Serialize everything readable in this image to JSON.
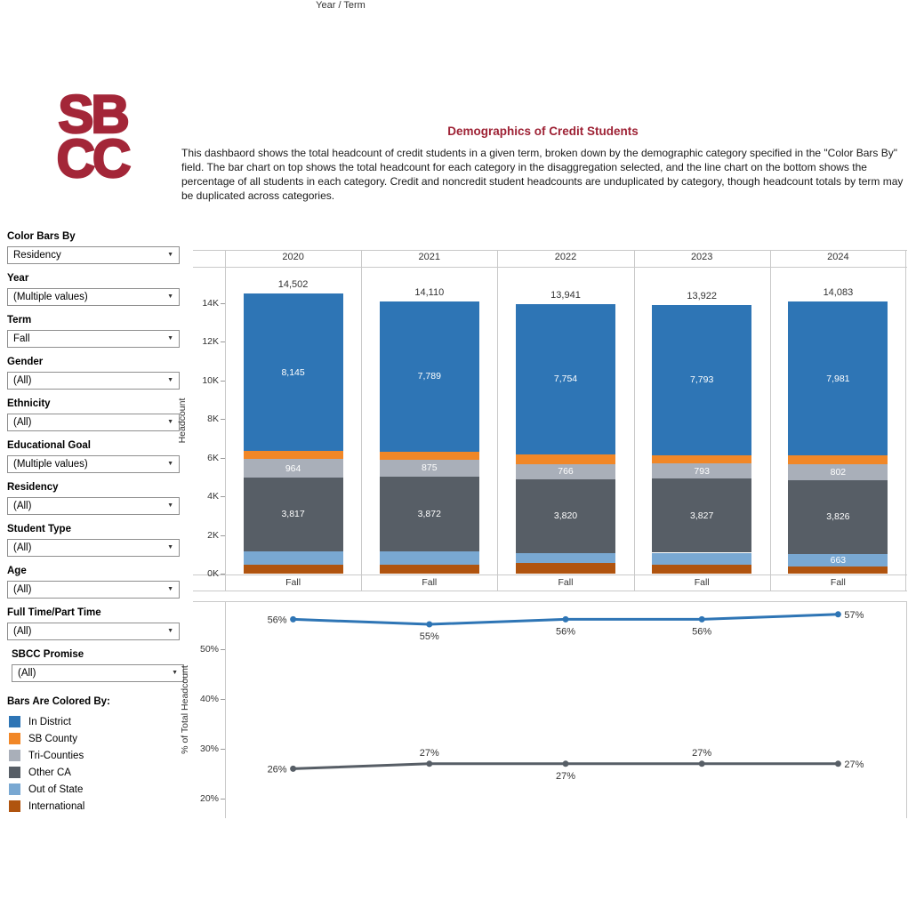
{
  "logo": {
    "line1": "SB",
    "line2": "CC"
  },
  "header": {
    "title": "Demographics of Credit Students",
    "description": "This dashbaord shows the total headcount of credit students in a given term, broken down by the demographic category specified in the \"Color Bars By\" field. The bar chart on top shows the total headcount for each category in the disaggregation selected, and the line chart on the bottom shows the percentage of all students in each category. Credit and noncredit student headcounts are unduplicated by category, though headcount totals by term may be duplicated across categories."
  },
  "filters": [
    {
      "id": "color-bars-by",
      "label": "Color Bars By",
      "value": "Residency",
      "indent": false
    },
    {
      "id": "year",
      "label": "Year",
      "value": "(Multiple values)",
      "indent": false
    },
    {
      "id": "term",
      "label": "Term",
      "value": "Fall",
      "indent": false
    },
    {
      "id": "gender",
      "label": "Gender",
      "value": "(All)",
      "indent": false
    },
    {
      "id": "ethnicity",
      "label": "Ethnicity",
      "value": "(All)",
      "indent": false
    },
    {
      "id": "educational-goal",
      "label": "Educational Goal",
      "value": "(Multiple values)",
      "indent": false
    },
    {
      "id": "residency",
      "label": "Residency",
      "value": "(All)",
      "indent": false
    },
    {
      "id": "student-type",
      "label": "Student Type",
      "value": "(All)",
      "indent": false
    },
    {
      "id": "age",
      "label": "Age",
      "value": "(All)",
      "indent": false
    },
    {
      "id": "full-time-part-time",
      "label": "Full Time/Part Time",
      "value": "(All)",
      "indent": false
    },
    {
      "id": "sbcc-promise",
      "label": "SBCC Promise",
      "value": "(All)",
      "indent": true
    }
  ],
  "legend": {
    "title": "Bars Are Colored By:",
    "items": [
      {
        "label": "In District",
        "color": "#2E75B5"
      },
      {
        "label": "SB County",
        "color": "#F18727"
      },
      {
        "label": "Tri-Counties",
        "color": "#A9AFB9"
      },
      {
        "label": "Other CA",
        "color": "#575E66"
      },
      {
        "label": "Out of State",
        "color": "#79A8D2"
      },
      {
        "label": "International",
        "color": "#B0540F"
      }
    ]
  },
  "chart_data": [
    {
      "type": "bar",
      "title": "Year / Term",
      "categories": [
        "2020",
        "2021",
        "2022",
        "2023",
        "2024"
      ],
      "term_row_label": "Fall",
      "ylabel": "Headcount",
      "ylim": [
        0,
        16000
      ],
      "yticks": [
        {
          "label": "14K",
          "value": 14000
        },
        {
          "label": "12K",
          "value": 12000
        },
        {
          "label": "10K",
          "value": 10000
        },
        {
          "label": "8K",
          "value": 8000
        },
        {
          "label": "6K",
          "value": 6000
        },
        {
          "label": "4K",
          "value": 4000
        },
        {
          "label": "2K",
          "value": 2000
        },
        {
          "label": "0K",
          "value": 0
        }
      ],
      "totals": {
        "labels": [
          "14,502",
          "14,110",
          "13,941",
          "13,922",
          "14,083"
        ],
        "values": [
          14502,
          14110,
          13941,
          13922,
          14083
        ]
      },
      "unlabeled_segment_values_estimated": true,
      "segments_bottom_to_top": [
        {
          "name": "International",
          "color": "#B0540F",
          "values": [
            461,
            454,
            564,
            440,
            356
          ],
          "labels": [
            null,
            null,
            null,
            null,
            null
          ]
        },
        {
          "name": "Out of State",
          "color": "#79A8D2",
          "values": [
            695,
            702,
            516,
            642,
            663
          ],
          "labels": [
            null,
            null,
            null,
            null,
            "663"
          ]
        },
        {
          "name": "Other CA",
          "color": "#575E66",
          "values": [
            3817,
            3872,
            3820,
            3827,
            3826
          ],
          "labels": [
            "3,817",
            "3,872",
            "3,820",
            "3,827",
            "3,826"
          ]
        },
        {
          "name": "Tri-Counties",
          "color": "#A9AFB9",
          "values": [
            964,
            875,
            766,
            793,
            802
          ],
          "labels": [
            "964",
            "875",
            "766",
            "793",
            "802"
          ]
        },
        {
          "name": "SB County",
          "color": "#F18727",
          "values": [
            420,
            418,
            521,
            427,
            455
          ],
          "labels": [
            null,
            null,
            null,
            null,
            null
          ]
        },
        {
          "name": "In District",
          "color": "#2E75B5",
          "values": [
            8145,
            7789,
            7754,
            7793,
            7981
          ],
          "labels": [
            "8,145",
            "7,789",
            "7,754",
            "7,793",
            "7,981"
          ]
        }
      ]
    },
    {
      "type": "line",
      "x": [
        "2020",
        "2021",
        "2022",
        "2023",
        "2024"
      ],
      "ylabel": "% of Total Headcount",
      "ylim": [
        16,
        60
      ],
      "yticks": [
        {
          "label": "50%",
          "value": 50
        },
        {
          "label": "40%",
          "value": 40
        },
        {
          "label": "30%",
          "value": 30
        },
        {
          "label": "20%",
          "value": 20
        }
      ],
      "series": [
        {
          "name": "In District",
          "color": "#2E75B5",
          "values": [
            56,
            55,
            56,
            56,
            57
          ],
          "point_labels": [
            "56%",
            "55%",
            "56%",
            "56%",
            "57%"
          ],
          "label_positions": [
            "left",
            "below",
            "below",
            "below",
            "right"
          ]
        },
        {
          "name": "Other CA",
          "color": "#575E66",
          "values": [
            26,
            27,
            27,
            27,
            27
          ],
          "point_labels": [
            "26%",
            "27%",
            "27%",
            "27%",
            "27%"
          ],
          "label_positions": [
            "left",
            "above",
            "below",
            "above",
            "right"
          ]
        }
      ]
    }
  ]
}
